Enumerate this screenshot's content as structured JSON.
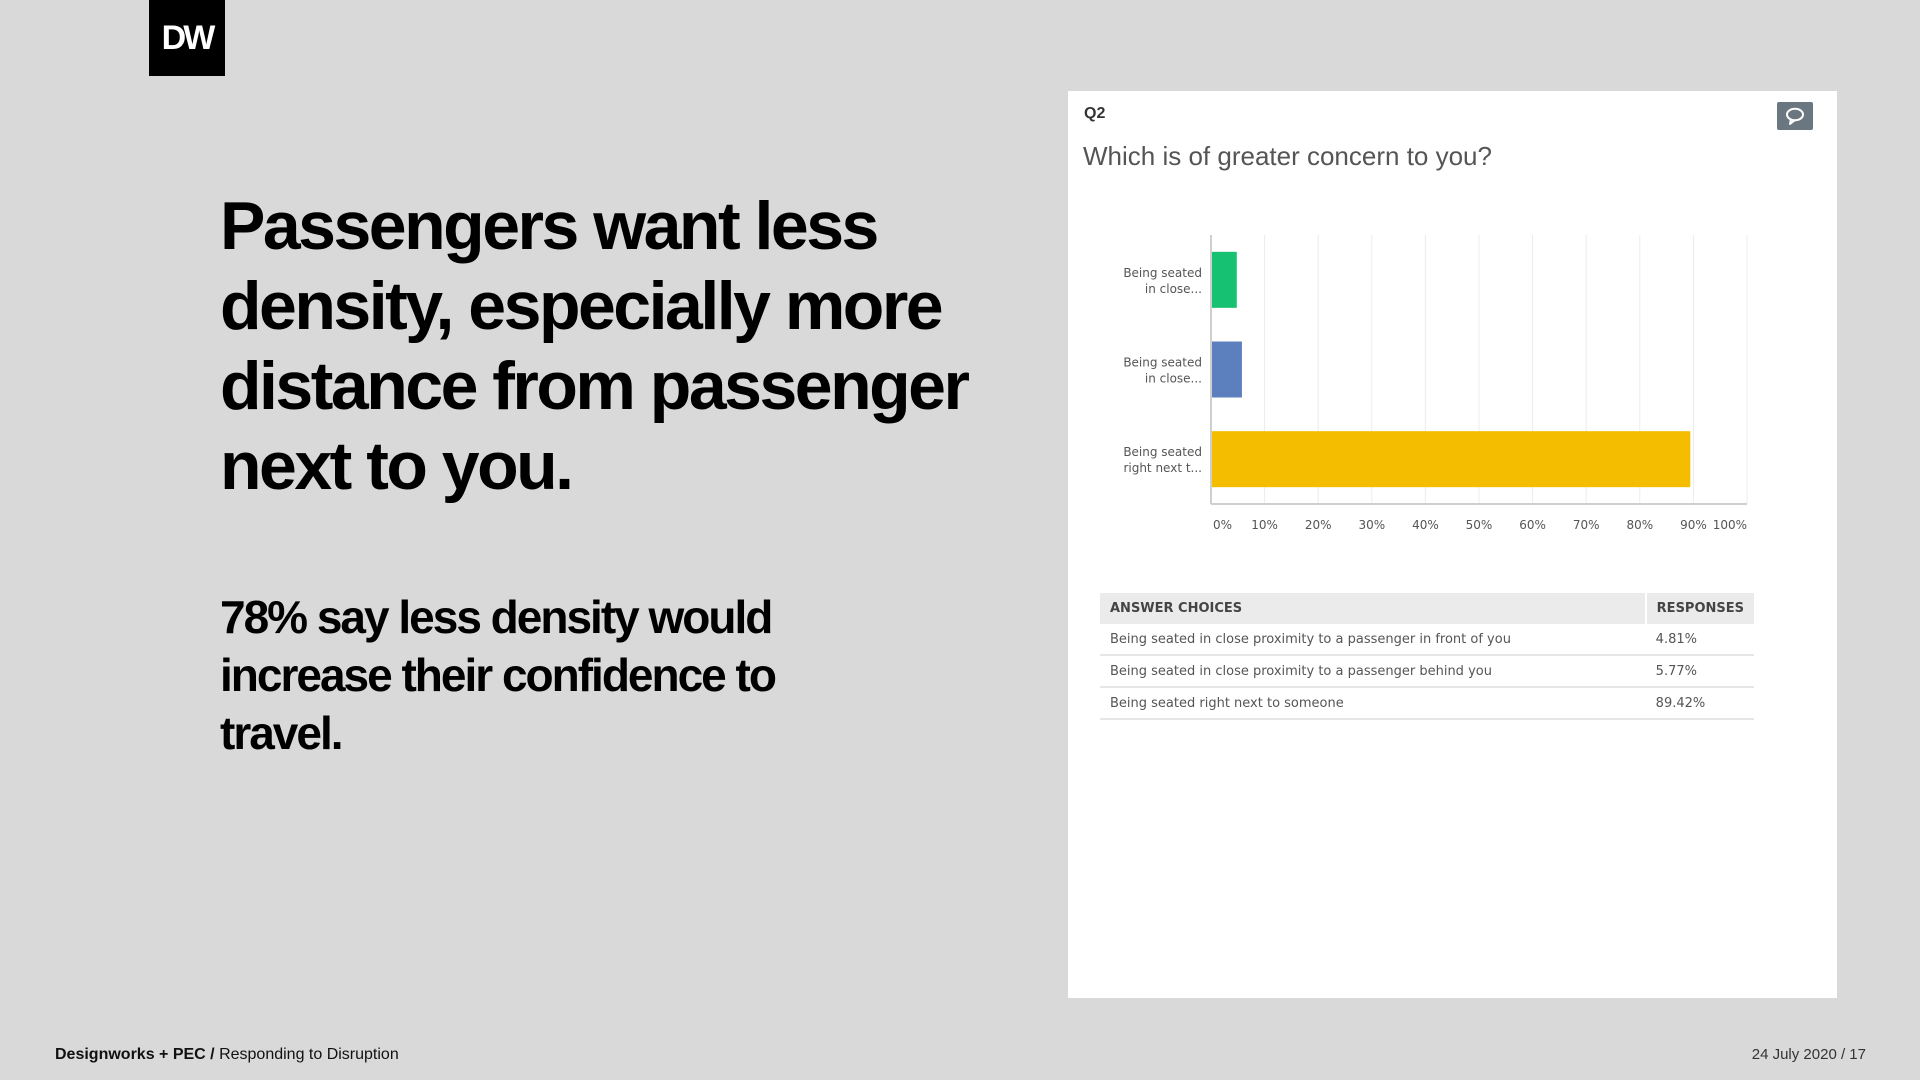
{
  "logo": {
    "text": "DW"
  },
  "headline": "Passengers want less density, especially more distance from passenger next to you.",
  "subline": "78% say less density would increase their confidence to travel.",
  "footer": {
    "brand": "Designworks + PEC /",
    "section": "Responding to Disruption",
    "date_page": "24 July 2020  /  17"
  },
  "panel": {
    "question_number": "Q2",
    "question": "Which is of greater concern to you?",
    "table": {
      "headers": [
        "ANSWER CHOICES",
        "RESPONSES"
      ],
      "rows": [
        {
          "choice": "Being seated in close proximity to a passenger in front of you",
          "response": "4.81%"
        },
        {
          "choice": "Being seated in close proximity to a passenger behind you",
          "response": "5.77%"
        },
        {
          "choice": "Being seated right next to someone",
          "response": "89.42%"
        }
      ]
    }
  },
  "chart_data": {
    "type": "bar",
    "orientation": "horizontal",
    "title": "Which is of greater concern to you?",
    "categories": [
      [
        "Being seated",
        "in close..."
      ],
      [
        "Being seated",
        "in close..."
      ],
      [
        "Being seated",
        "right next t..."
      ]
    ],
    "values": [
      4.81,
      5.77,
      89.42
    ],
    "colors": [
      "#16c172",
      "#5b80bd",
      "#f5bd00"
    ],
    "xlim": [
      0,
      100
    ],
    "xticks": [
      "0%",
      "10%",
      "20%",
      "30%",
      "40%",
      "50%",
      "60%",
      "70%",
      "80%",
      "90%",
      "100%"
    ],
    "grid": true,
    "legend": "none"
  }
}
